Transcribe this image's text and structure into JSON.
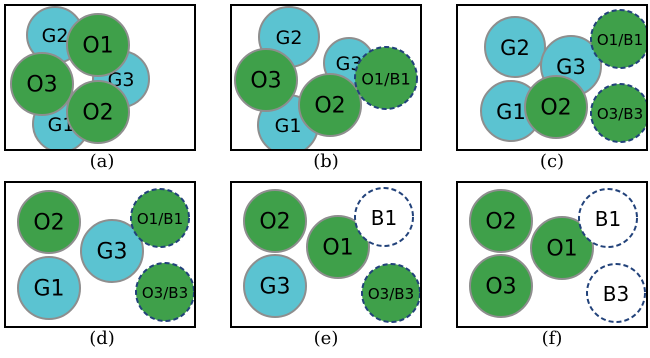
{
  "colors": {
    "green": "#3fa04a",
    "cyan": "#5bc3d1",
    "gray_stroke": "#8e8e8e",
    "dashed_stroke": "#22427a",
    "empty_fill": "#ffffff"
  },
  "panels": [
    {
      "caption": "(a)",
      "circles": [
        {
          "label": "G2",
          "fill": "cyan",
          "style": "solid"
        },
        {
          "label": "G3",
          "fill": "cyan",
          "style": "solid"
        },
        {
          "label": "G1",
          "fill": "cyan",
          "style": "solid"
        },
        {
          "label": "O1",
          "fill": "green",
          "style": "solid"
        },
        {
          "label": "O3",
          "fill": "green",
          "style": "solid"
        },
        {
          "label": "O2",
          "fill": "green",
          "style": "solid"
        }
      ]
    },
    {
      "caption": "(b)",
      "circles": [
        {
          "label": "G2",
          "fill": "cyan",
          "style": "solid"
        },
        {
          "label": "G3",
          "fill": "cyan",
          "style": "solid"
        },
        {
          "label": "G1",
          "fill": "cyan",
          "style": "solid"
        },
        {
          "label": "O3",
          "fill": "green",
          "style": "solid"
        },
        {
          "label": "O2",
          "fill": "green",
          "style": "solid"
        },
        {
          "label": "O1/B1",
          "fill": "green",
          "style": "dashed"
        }
      ]
    },
    {
      "caption": "(c)",
      "circles": [
        {
          "label": "G2",
          "fill": "cyan",
          "style": "solid"
        },
        {
          "label": "G3",
          "fill": "cyan",
          "style": "solid"
        },
        {
          "label": "G1",
          "fill": "cyan",
          "style": "solid"
        },
        {
          "label": "O2",
          "fill": "green",
          "style": "solid"
        },
        {
          "label": "O1/B1",
          "fill": "green",
          "style": "dashed"
        },
        {
          "label": "O3/B3",
          "fill": "green",
          "style": "dashed"
        }
      ]
    },
    {
      "caption": "(d)",
      "circles": [
        {
          "label": "O2",
          "fill": "green",
          "style": "solid"
        },
        {
          "label": "G3",
          "fill": "cyan",
          "style": "solid"
        },
        {
          "label": "G1",
          "fill": "cyan",
          "style": "solid"
        },
        {
          "label": "O1/B1",
          "fill": "green",
          "style": "dashed"
        },
        {
          "label": "O3/B3",
          "fill": "green",
          "style": "dashed"
        }
      ]
    },
    {
      "caption": "(e)",
      "circles": [
        {
          "label": "O2",
          "fill": "green",
          "style": "solid"
        },
        {
          "label": "O1",
          "fill": "green",
          "style": "solid"
        },
        {
          "label": "G3",
          "fill": "cyan",
          "style": "solid"
        },
        {
          "label": "B1",
          "fill": "empty",
          "style": "dashed"
        },
        {
          "label": "O3/B3",
          "fill": "green",
          "style": "dashed"
        }
      ]
    },
    {
      "caption": "(f)",
      "circles": [
        {
          "label": "O2",
          "fill": "green",
          "style": "solid"
        },
        {
          "label": "O1",
          "fill": "green",
          "style": "solid"
        },
        {
          "label": "O3",
          "fill": "green",
          "style": "solid"
        },
        {
          "label": "B1",
          "fill": "empty",
          "style": "dashed"
        },
        {
          "label": "B3",
          "fill": "empty",
          "style": "dashed"
        }
      ]
    }
  ]
}
